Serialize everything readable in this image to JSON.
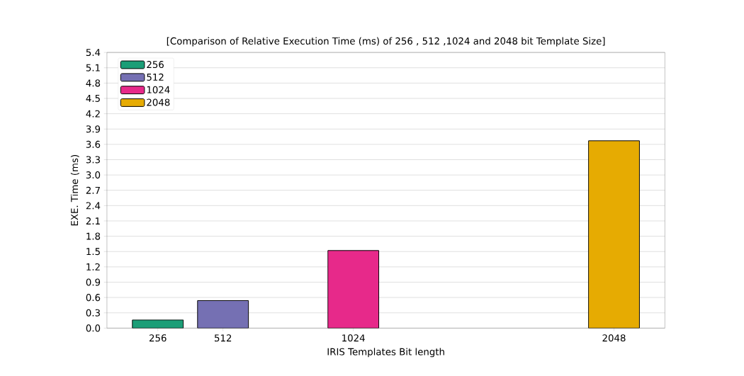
{
  "chart_data": {
    "type": "bar",
    "title": "[Comparison of Relative Execution Time (ms) of 256 , 512 ,1024 and 2048 bit Template Size]",
    "xlabel": "IRIS Templates Bit length",
    "ylabel": "EXE. Time (ms)",
    "series": [
      {
        "name": "256",
        "color": "#1b9e77",
        "x": [
          256
        ],
        "values": [
          0.16
        ]
      },
      {
        "name": "512",
        "color": "#7570b3",
        "x": [
          512
        ],
        "values": [
          0.54
        ]
      },
      {
        "name": "1024",
        "color": "#e7298a",
        "x": [
          1024
        ],
        "values": [
          1.52
        ]
      },
      {
        "name": "2048",
        "color": "#e6ab02",
        "x": [
          2048
        ],
        "values": [
          3.67
        ]
      }
    ],
    "xlim": [
      56,
      2248
    ],
    "xticks": [
      256,
      512,
      1024,
      2048
    ],
    "ylim": [
      0,
      5.4
    ],
    "yticks": [
      {
        "value": 0,
        "label": "0.0"
      },
      0.3,
      0.6,
      0.9,
      1.2,
      1.5,
      1.8,
      2.1,
      2.4,
      2.7,
      {
        "value": 3,
        "label": "3.0"
      },
      3.3,
      3.6,
      3.9,
      4.2,
      4.5,
      4.8,
      5.1,
      5.4
    ],
    "grid": "y",
    "legend": "top left"
  }
}
